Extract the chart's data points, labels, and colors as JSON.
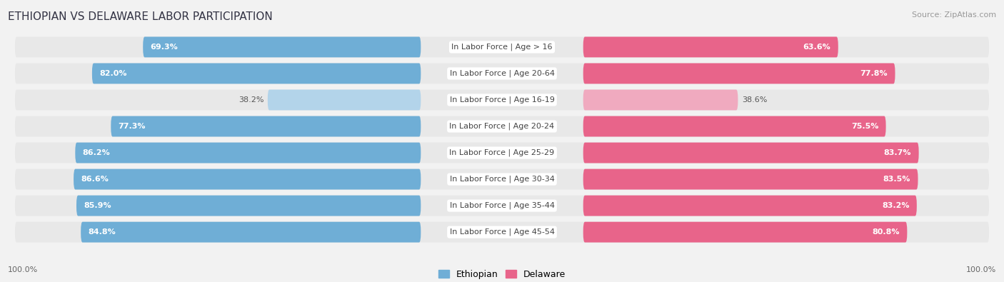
{
  "title": "ETHIOPIAN VS DELAWARE LABOR PARTICIPATION",
  "source": "Source: ZipAtlas.com",
  "categories": [
    "In Labor Force | Age > 16",
    "In Labor Force | Age 20-64",
    "In Labor Force | Age 16-19",
    "In Labor Force | Age 20-24",
    "In Labor Force | Age 25-29",
    "In Labor Force | Age 30-34",
    "In Labor Force | Age 35-44",
    "In Labor Force | Age 45-54"
  ],
  "ethiopian": [
    69.3,
    82.0,
    38.2,
    77.3,
    86.2,
    86.6,
    85.9,
    84.8
  ],
  "delaware": [
    63.6,
    77.8,
    38.6,
    75.5,
    83.7,
    83.5,
    83.2,
    80.8
  ],
  "ethiopian_color": "#6faed6",
  "ethiopian_color_light": "#b3d4ea",
  "delaware_color": "#e8648a",
  "delaware_color_light": "#f0aabf",
  "bg_color": "#f2f2f2",
  "row_bg": "#e8e8e8",
  "max_val": 100.0,
  "legend_ethiopian": "Ethiopian",
  "legend_delaware": "Delaware",
  "axis_label_left": "100.0%",
  "axis_label_right": "100.0%"
}
